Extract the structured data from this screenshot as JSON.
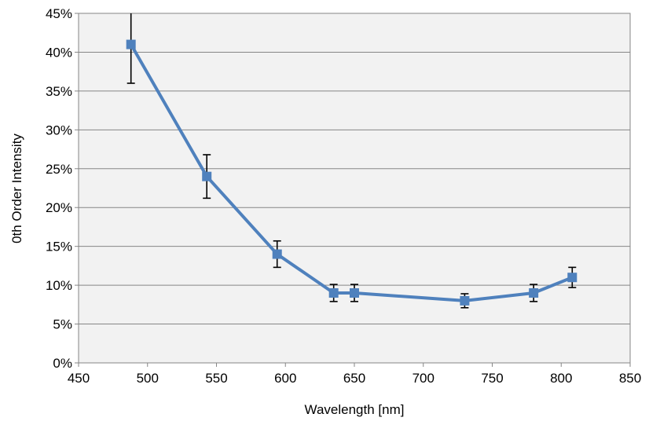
{
  "chart_data": {
    "type": "line",
    "title": "",
    "xlabel": "Wavelength [nm]",
    "ylabel": "0th Order Intensity",
    "xlim": [
      450,
      850
    ],
    "ylim": [
      0,
      45
    ],
    "x_ticks": [
      450,
      500,
      550,
      600,
      650,
      700,
      750,
      800,
      850
    ],
    "y_ticks": [
      0,
      5,
      10,
      15,
      20,
      25,
      30,
      35,
      40,
      45
    ],
    "y_tick_format": "percent",
    "grid": true,
    "legend": "none",
    "series": [
      {
        "x": [
          488,
          543,
          594,
          635,
          650,
          730,
          780,
          808
        ],
        "values": [
          41,
          24,
          14,
          9,
          9,
          8,
          9,
          11
        ],
        "error": [
          5,
          2.8,
          1.7,
          1.1,
          1.1,
          0.9,
          1.1,
          1.3
        ],
        "color": "#4f81bd",
        "marker": "square"
      }
    ],
    "colors": {
      "plot_background": "#f2f2f2",
      "gridline": "#868686",
      "error_bar": "#000000"
    }
  }
}
